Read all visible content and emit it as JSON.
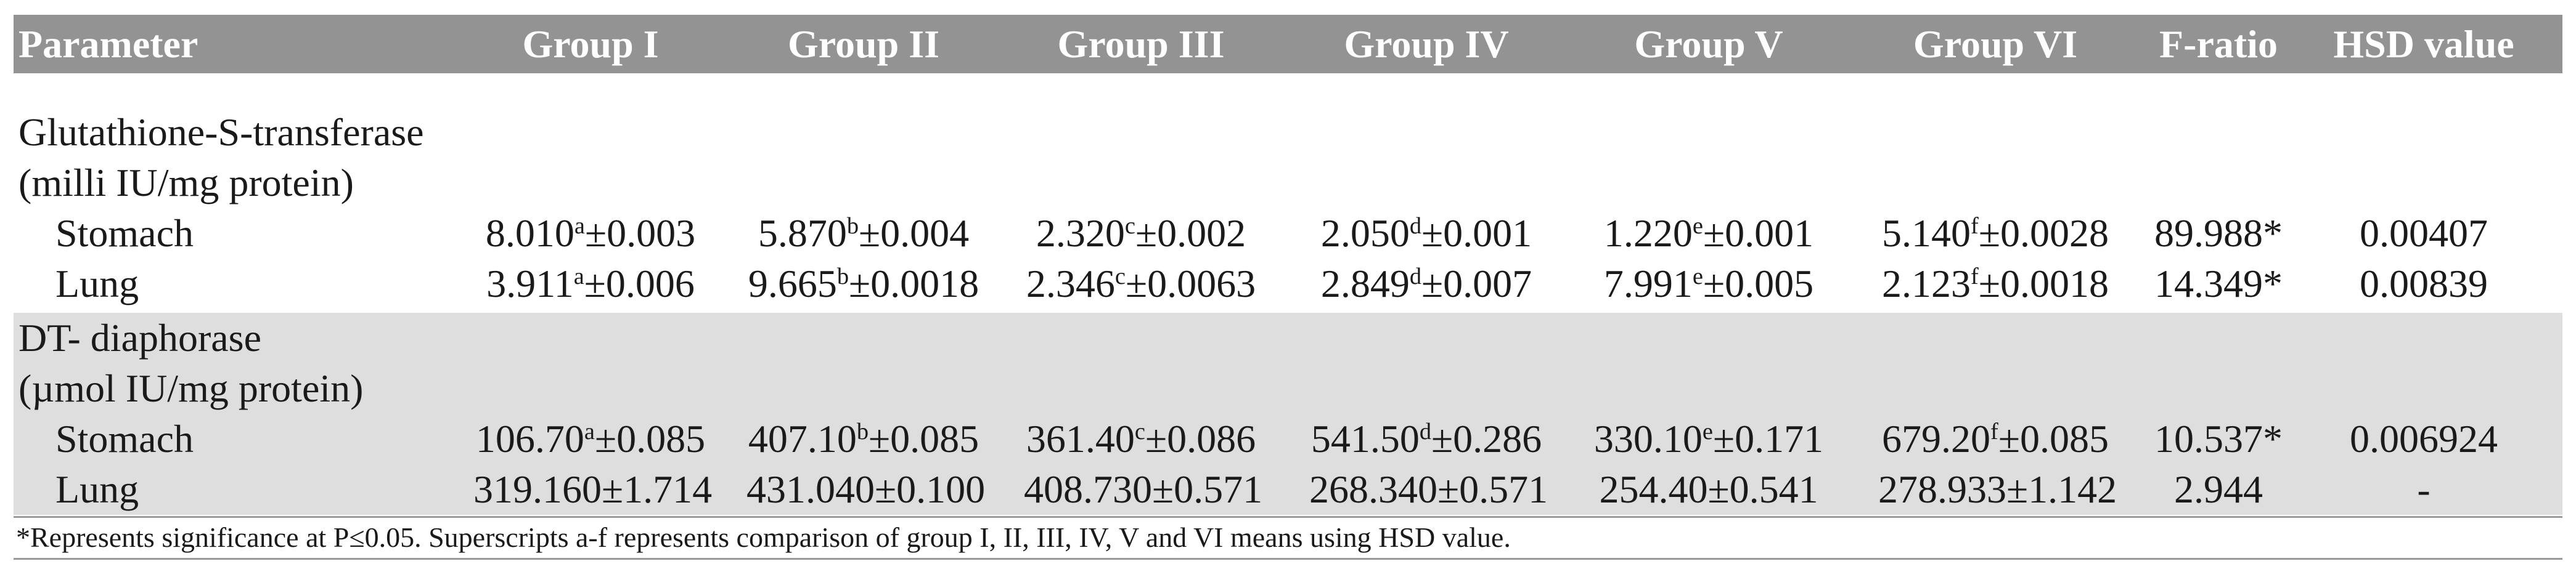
{
  "table": {
    "headers": [
      "Parameter",
      "Group I",
      "Group II",
      "Group III",
      "Group IV",
      "Group V",
      "Group VI",
      "F-ratio",
      "HSD value"
    ],
    "sections": [
      {
        "title": "Glutathione-S-transferase",
        "unit": "(milli IU/mg protein)",
        "rows": [
          {
            "label": "Stomach",
            "cells": [
              {
                "value": "8.010",
                "sup": "a",
                "err": "±0.003"
              },
              {
                "value": "5.870",
                "sup": "b",
                "err": "±0.004"
              },
              {
                "value": "2.320",
                "sup": "c",
                "err": "±0.002"
              },
              {
                "value": "2.050",
                "sup": "d",
                "err": "±0.001"
              },
              {
                "value": "1.220",
                "sup": "e",
                "err": "±0.001"
              },
              {
                "value": "5.140",
                "sup": "f",
                "err": "±0.0028"
              }
            ],
            "f_ratio": "89.988*",
            "hsd": "0.00407"
          },
          {
            "label": "Lung",
            "cells": [
              {
                "value": "3.911",
                "sup": "a",
                "err": "±0.006"
              },
              {
                "value": "9.665",
                "sup": "b",
                "err": "±0.0018"
              },
              {
                "value": "2.346",
                "sup": "c",
                "err": "±0.0063"
              },
              {
                "value": "2.849",
                "sup": "d",
                "err": "±0.007"
              },
              {
                "value": "7.991",
                "sup": "e",
                "err": "±0.005"
              },
              {
                "value": "2.123",
                "sup": "f",
                "err": "±0.0018"
              }
            ],
            "f_ratio": "14.349*",
            "hsd": "0.00839"
          }
        ]
      },
      {
        "title": "DT- diaphorase",
        "unit": "(µmol IU/mg protein)",
        "rows": [
          {
            "label": "Stomach",
            "cells": [
              {
                "value": "106.70",
                "sup": "a",
                "err": "±0.085"
              },
              {
                "value": "407.10",
                "sup": "b",
                "err": "±0.085"
              },
              {
                "value": "361.40",
                "sup": "c",
                "err": "±0.086"
              },
              {
                "value": "541.50",
                "sup": "d",
                "err": "±0.286"
              },
              {
                "value": "330.10",
                "sup": "e",
                "err": "±0.171"
              },
              {
                "value": "679.20",
                "sup": "f",
                "err": "±0.085"
              }
            ],
            "f_ratio": "10.537*",
            "hsd": "0.006924"
          },
          {
            "label": "Lung",
            "cells": [
              {
                "value": "319.160",
                "sup": "",
                "err": "±1.714"
              },
              {
                "value": "431.040",
                "sup": "",
                "err": "±0.100"
              },
              {
                "value": "408.730",
                "sup": "",
                "err": "±0.571"
              },
              {
                "value": "268.340",
                "sup": "",
                "err": "±0.571"
              },
              {
                "value": "254.40",
                "sup": "",
                "err": "±0.541"
              },
              {
                "value": "278.933",
                "sup": "",
                "err": "±1.142"
              }
            ],
            "f_ratio": "2.944",
            "hsd": "-"
          }
        ]
      }
    ],
    "footnote": "*Represents significance at P≤0.05. Superscripts a-f represents comparison of group I, II, III, IV, V and VI means using HSD value.",
    "colors": {
      "header_bg": "#939393",
      "header_text": "#ffffff",
      "shaded_bg": "#dedede"
    }
  }
}
